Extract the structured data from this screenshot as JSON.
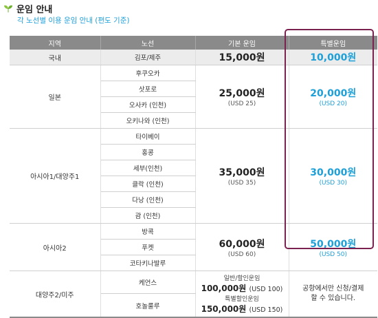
{
  "header": {
    "title": "운임 안내",
    "subtitle": "각 노선별 이용 운임 안내 (편도 기준)"
  },
  "columns": [
    "지역",
    "노선",
    "기본 운임",
    "특별운임"
  ],
  "rows": {
    "domestic": {
      "region": "국내",
      "route": "김포/제주",
      "fare": "15,000원",
      "special": "10,000원"
    },
    "japan": {
      "region": "일본",
      "routes": [
        "후쿠오카",
        "삿포로",
        "오사카 (인천)",
        "오키나와 (인천)"
      ],
      "fare": "25,000원",
      "fare_usd": "(USD 25)",
      "special": "20,000원",
      "special_usd": "(USD 20)"
    },
    "asia1": {
      "region": "아시아1/대양주1",
      "routes": [
        "타이베이",
        "홍콩",
        "세부(인천)",
        "클락 (인천)",
        "다낭 (인천)",
        "괌 (인천)"
      ],
      "fare": "35,000원",
      "fare_usd": "(USD 35)",
      "special": "30,000원",
      "special_usd": "(USD 30)"
    },
    "asia2": {
      "region": "아시아2",
      "routes": [
        "방콕",
        "푸켓",
        "코타키나발루"
      ],
      "fare": "60,000원",
      "fare_usd": "(USD 60)",
      "special": "50,000원",
      "special_usd": "(USD 50)"
    },
    "oceania2": {
      "region": "대양주2/미주",
      "routes": [
        "케언스",
        "호놀룰루"
      ],
      "fare_label_1": "일반/할인운임",
      "fare_1": "100,000원",
      "fare_1_usd": "(USD 100)",
      "fare_label_2": "특별할인운임",
      "fare_2": "150,000원",
      "fare_2_usd": "(USD 150)",
      "special_line_1": "공항에서만 신청/결제",
      "special_line_2": "할 수 있습니다."
    }
  },
  "colors": {
    "accent": "#1d9fd8",
    "highlight_frame": "#7b2150",
    "header_bg": "#8a8a8a",
    "leaf_icon": "#8cc63f"
  }
}
